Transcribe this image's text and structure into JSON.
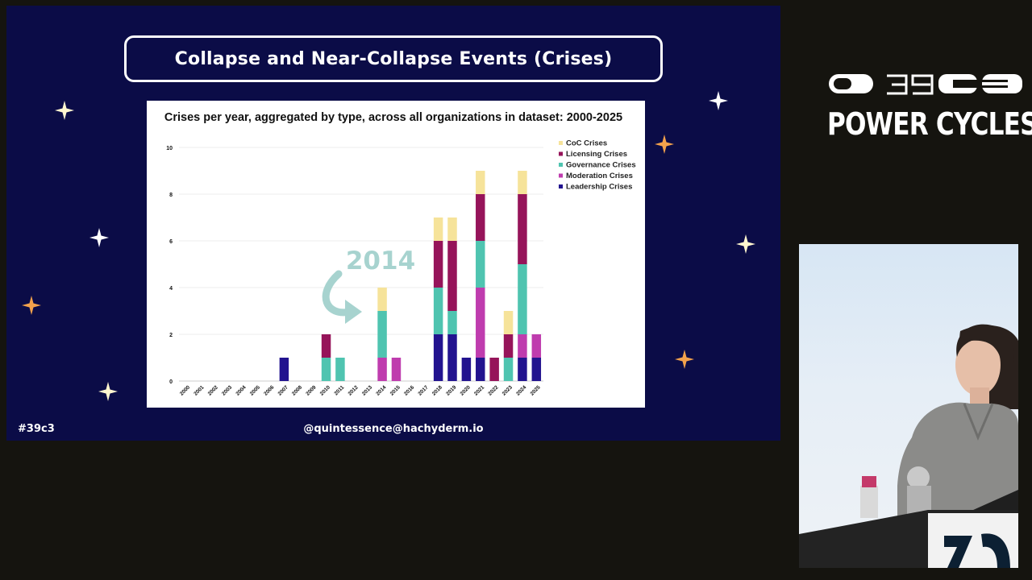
{
  "slide": {
    "title": "Collapse and Near-Collapse Events (Crises)",
    "hashtag": "#39c3",
    "handle": "@quintessence@hachyderm.io",
    "annotation": "2014"
  },
  "event": {
    "logo_text": "39C3",
    "name": "POWER CYCLES"
  },
  "colors": {
    "slide_bg": "#0b0c47",
    "coc": "#f6e39a",
    "licensing": "#96145a",
    "governance": "#4fc4b0",
    "moderation": "#bf3cae",
    "leadership": "#22138f",
    "annotation": "#a7d3cf",
    "star_white": "#fff6cf",
    "star_orange": "#f3a24c"
  },
  "chart_data": {
    "type": "bar",
    "stacked": true,
    "title": "Crises per year, aggregated by type, across all organizations in dataset: 2000-2025",
    "xlabel": "",
    "ylabel": "",
    "ylim": [
      0,
      10
    ],
    "yticks": [
      "0",
      "2",
      "4",
      "6",
      "8",
      "10"
    ],
    "grid": true,
    "legend_position": "top-right",
    "categories": [
      "2000",
      "2001",
      "2002",
      "2003",
      "2004",
      "2005",
      "2006",
      "2007",
      "2008",
      "2009",
      "2010",
      "2011",
      "2012",
      "2013",
      "2014",
      "2015",
      "2016",
      "2017",
      "2018",
      "2019",
      "2020",
      "2021",
      "2022",
      "2023",
      "2024",
      "2025"
    ],
    "series": [
      {
        "name": "Leadership Crises",
        "color_key": "leadership",
        "values": [
          0,
          0,
          0,
          0,
          0,
          0,
          0,
          1,
          0,
          0,
          0,
          0,
          0,
          0,
          0,
          0,
          0,
          0,
          2,
          2,
          1,
          1,
          0,
          0,
          1,
          1
        ]
      },
      {
        "name": "Moderation Crises",
        "color_key": "moderation",
        "values": [
          0,
          0,
          0,
          0,
          0,
          0,
          0,
          0,
          0,
          0,
          0,
          0,
          0,
          0,
          1,
          1,
          0,
          0,
          0,
          0,
          0,
          3,
          0,
          0,
          1,
          1
        ]
      },
      {
        "name": "Governance Crises",
        "color_key": "governance",
        "values": [
          0,
          0,
          0,
          0,
          0,
          0,
          0,
          0,
          0,
          0,
          1,
          1,
          0,
          0,
          2,
          0,
          0,
          0,
          2,
          1,
          0,
          2,
          0,
          1,
          3,
          0
        ]
      },
      {
        "name": "Licensing Crises",
        "color_key": "licensing",
        "values": [
          0,
          0,
          0,
          0,
          0,
          0,
          0,
          0,
          0,
          0,
          1,
          0,
          0,
          0,
          0,
          0,
          0,
          0,
          2,
          3,
          0,
          2,
          1,
          1,
          3,
          0
        ]
      },
      {
        "name": "CoC Crises",
        "color_key": "coc",
        "values": [
          0,
          0,
          0,
          0,
          0,
          0,
          0,
          0,
          0,
          0,
          0,
          0,
          0,
          0,
          1,
          0,
          0,
          0,
          1,
          1,
          0,
          1,
          0,
          1,
          1,
          0
        ]
      }
    ],
    "legend_order": [
      "CoC Crises",
      "Licensing Crises",
      "Governance Crises",
      "Moderation Crises",
      "Leadership Crises"
    ]
  }
}
